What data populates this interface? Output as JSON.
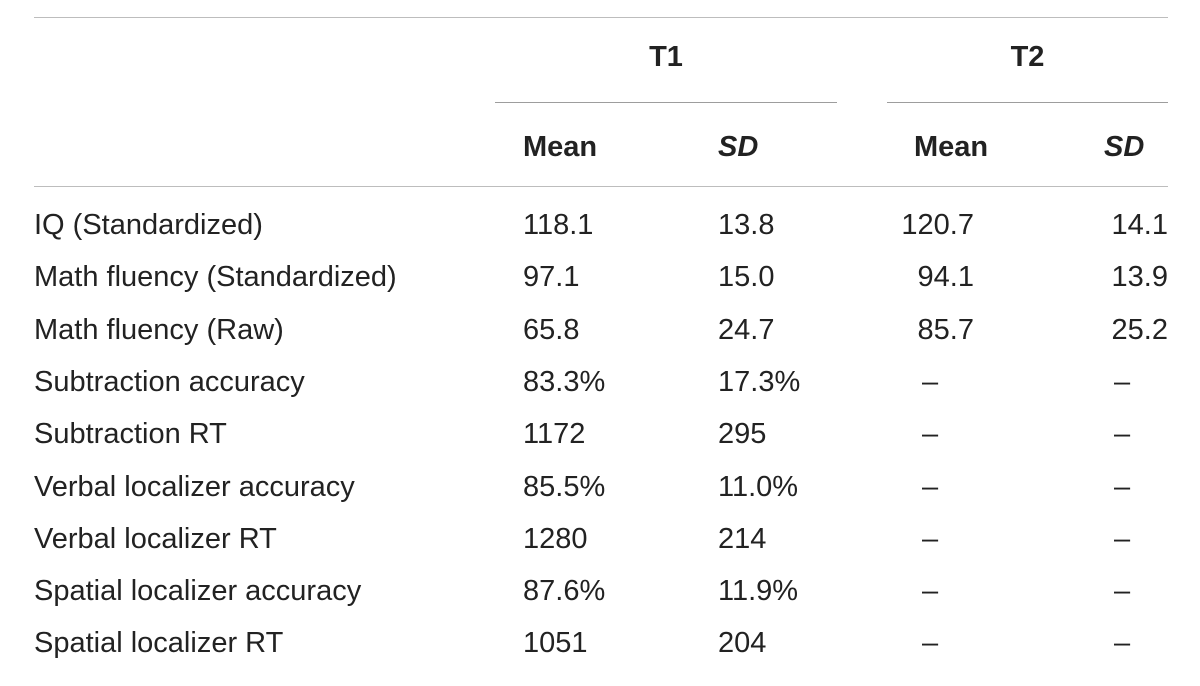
{
  "header": {
    "groups": [
      "T1",
      "T2"
    ],
    "columns": [
      "Mean",
      "SD",
      "Mean",
      "SD"
    ]
  },
  "rows": [
    {
      "label": "IQ (Standardized)",
      "t1_mean": "118.1",
      "t1_sd": "13.8",
      "t2_mean": "120.7",
      "t2_sd": "14.1"
    },
    {
      "label": "Math fluency (Standardized)",
      "t1_mean": "97.1",
      "t1_sd": "15.0",
      "t2_mean": "94.1",
      "t2_sd": "13.9"
    },
    {
      "label": "Math fluency (Raw)",
      "t1_mean": "65.8",
      "t1_sd": "24.7",
      "t2_mean": "85.7",
      "t2_sd": "25.2"
    },
    {
      "label": "Subtraction accuracy",
      "t1_mean": "83.3%",
      "t1_sd": "17.3%",
      "t2_mean": "–",
      "t2_sd": "–"
    },
    {
      "label": "Subtraction RT",
      "t1_mean": "1172",
      "t1_sd": "295",
      "t2_mean": "–",
      "t2_sd": "–"
    },
    {
      "label": "Verbal localizer accuracy",
      "t1_mean": "85.5%",
      "t1_sd": "11.0%",
      "t2_mean": "–",
      "t2_sd": "–"
    },
    {
      "label": "Verbal localizer RT",
      "t1_mean": "1280",
      "t1_sd": "214",
      "t2_mean": "–",
      "t2_sd": "–"
    },
    {
      "label": "Spatial localizer accuracy",
      "t1_mean": "87.6%",
      "t1_sd": "11.9%",
      "t2_mean": "–",
      "t2_sd": "–"
    },
    {
      "label": "Spatial localizer RT",
      "t1_mean": "1051",
      "t1_sd": "204",
      "t2_mean": "–",
      "t2_sd": "–"
    }
  ]
}
